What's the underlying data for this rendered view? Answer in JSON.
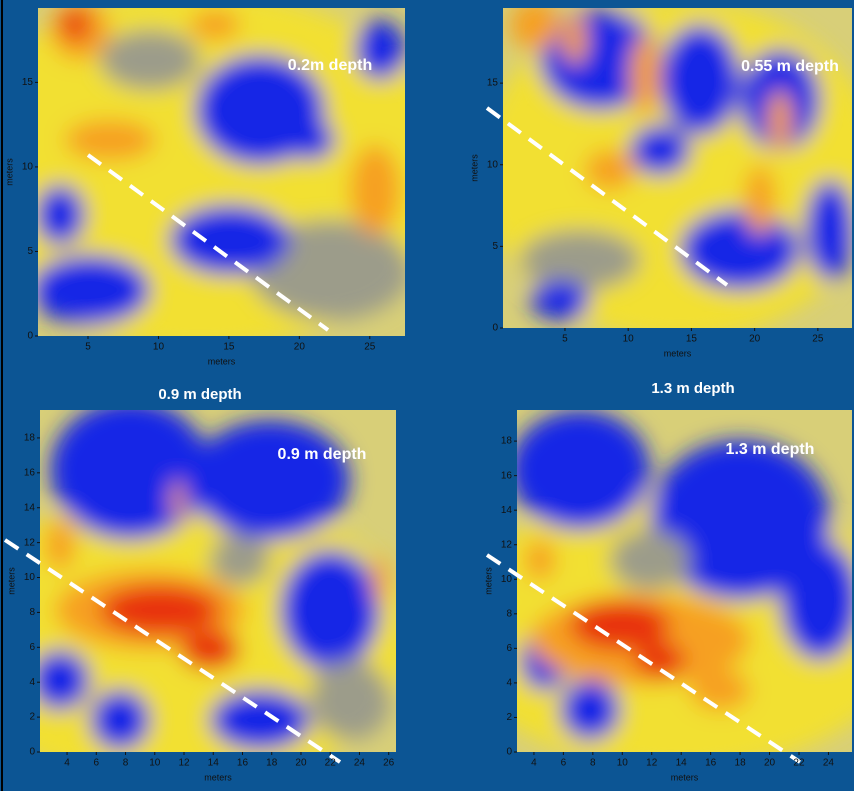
{
  "panels": [
    {
      "label": "0.2m depth",
      "xlabel": "meters",
      "ylabel": "meters",
      "xlim": [
        1.45,
        27.5
      ],
      "ylim": [
        0,
        19.4
      ],
      "xticks": [
        5,
        10,
        15,
        20,
        25
      ],
      "yticks": [
        0,
        5,
        10,
        15
      ]
    },
    {
      "label": "0.55 m depth",
      "xlabel": "meters",
      "ylabel": "meters",
      "xlim": [
        0.1,
        27.7
      ],
      "ylim": [
        0,
        19.6
      ],
      "xticks": [
        5,
        10,
        15,
        20,
        25
      ],
      "yticks": [
        0,
        5,
        10,
        15
      ]
    },
    {
      "title": "0.9 m depth",
      "label": "0.9 m depth",
      "xlabel": "meters",
      "ylabel": "meters",
      "xlim": [
        2.15,
        26.5
      ],
      "ylim": [
        0,
        19.6
      ],
      "xticks": [
        4,
        6,
        8,
        10,
        12,
        14,
        16,
        18,
        20,
        22,
        24,
        26
      ],
      "yticks": [
        0,
        2,
        4,
        6,
        8,
        10,
        12,
        14,
        16,
        18
      ]
    },
    {
      "title": "1.3 m depth",
      "label": "1.3 m depth",
      "xlabel": "meters",
      "ylabel": "meters",
      "xlim": [
        2.85,
        25.6
      ],
      "ylim": [
        0,
        19.8
      ],
      "xticks": [
        4,
        6,
        8,
        10,
        12,
        14,
        16,
        18,
        20,
        22,
        24
      ],
      "yticks": [
        0,
        2,
        4,
        6,
        8,
        10,
        12,
        14,
        16,
        18
      ]
    }
  ]
}
